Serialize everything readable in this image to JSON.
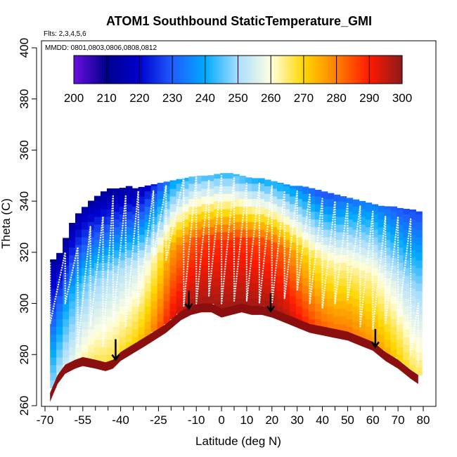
{
  "chart_data": {
    "type": "heatmap",
    "title": "ATOM1 Southbound StaticTemperature_GMI",
    "flights_label": "Flts: 2,3,4,5,6",
    "dates_label": "MMDD: 0801,0803,0806,0808,0812",
    "xlabel": "Latitude (deg N)",
    "ylabel": "Theta (C)",
    "xlim": [
      -70,
      80
    ],
    "ylim": [
      260,
      400
    ],
    "x_ticks": [
      -70,
      -55,
      -40,
      -25,
      -10,
      0,
      10,
      20,
      30,
      40,
      50,
      60,
      70,
      80
    ],
    "x_minor_ticks": [
      -65,
      -60,
      -50,
      -45,
      -35,
      -30,
      -20,
      -15,
      -5,
      5,
      15,
      25,
      35,
      45,
      55,
      65,
      75
    ],
    "y_ticks": [
      260,
      280,
      300,
      320,
      340,
      360,
      380,
      400
    ],
    "colorbar": {
      "ticks": [
        200,
        210,
        220,
        230,
        240,
        250,
        260,
        270,
        280,
        290,
        300
      ],
      "range": [
        200,
        300
      ],
      "colors": [
        "#6a0ee0",
        "#00008b",
        "#0000cd",
        "#1e5cff",
        "#00aaff",
        "#a8ddff",
        "#ffffe0",
        "#ffd700",
        "#ff7f00",
        "#ff1a00",
        "#8b1a1a"
      ]
    },
    "surface_theta": [
      [
        -68,
        265
      ],
      [
        -65,
        272
      ],
      [
        -62,
        276
      ],
      [
        -58,
        278
      ],
      [
        -55,
        279
      ],
      [
        -50,
        278
      ],
      [
        -46,
        277
      ],
      [
        -43,
        278
      ],
      [
        -40,
        281
      ],
      [
        -35,
        284
      ],
      [
        -30,
        287
      ],
      [
        -22,
        292
      ],
      [
        -16,
        297
      ],
      [
        -12,
        299
      ],
      [
        -8,
        300
      ],
      [
        -4,
        300
      ],
      [
        0,
        298
      ],
      [
        4,
        299
      ],
      [
        8,
        300
      ],
      [
        12,
        299
      ],
      [
        16,
        299
      ],
      [
        20,
        298
      ],
      [
        25,
        296
      ],
      [
        30,
        294
      ],
      [
        35,
        292
      ],
      [
        40,
        291
      ],
      [
        45,
        290
      ],
      [
        50,
        289
      ],
      [
        55,
        287
      ],
      [
        60,
        285
      ],
      [
        65,
        281
      ],
      [
        70,
        278
      ],
      [
        75,
        274
      ],
      [
        78,
        272
      ]
    ],
    "top_theta": [
      [
        -68,
        316
      ],
      [
        -66,
        318
      ],
      [
        -64,
        320
      ],
      [
        -62,
        325
      ],
      [
        -60,
        330
      ],
      [
        -58,
        334
      ],
      [
        -55,
        337
      ],
      [
        -52,
        340
      ],
      [
        -48,
        343
      ],
      [
        -45,
        345
      ],
      [
        -40,
        345
      ],
      [
        -37,
        346
      ],
      [
        -34,
        345
      ],
      [
        -30,
        346
      ],
      [
        -25,
        347
      ],
      [
        -20,
        348
      ],
      [
        -15,
        349
      ],
      [
        -10,
        350
      ],
      [
        -5,
        350
      ],
      [
        0,
        351
      ],
      [
        4,
        351
      ],
      [
        8,
        350
      ],
      [
        12,
        349
      ],
      [
        16,
        349
      ],
      [
        20,
        348
      ],
      [
        24,
        347
      ],
      [
        28,
        346
      ],
      [
        32,
        346
      ],
      [
        36,
        345
      ],
      [
        40,
        344
      ],
      [
        44,
        343
      ],
      [
        48,
        342
      ],
      [
        52,
        341
      ],
      [
        56,
        340
      ],
      [
        60,
        339
      ],
      [
        64,
        338
      ],
      [
        68,
        338
      ],
      [
        72,
        337
      ],
      [
        75,
        337
      ],
      [
        78,
        336
      ]
    ],
    "temperature_profile": [
      [
        -68,
        248,
        230,
        213
      ],
      [
        -60,
        256,
        240,
        212
      ],
      [
        -55,
        262,
        245,
        214
      ],
      [
        -50,
        266,
        248,
        213
      ],
      [
        -45,
        267,
        250,
        212
      ],
      [
        -40,
        268,
        251,
        213
      ],
      [
        -35,
        270,
        253,
        213
      ],
      [
        -30,
        275,
        257,
        218
      ],
      [
        -25,
        283,
        265,
        226
      ],
      [
        -20,
        292,
        276,
        237
      ],
      [
        -15,
        296,
        281,
        241
      ],
      [
        -10,
        298,
        285,
        244
      ],
      [
        -5,
        298,
        287,
        244
      ],
      [
        0,
        298,
        288,
        243
      ],
      [
        5,
        298,
        288,
        243
      ],
      [
        10,
        298,
        287,
        242
      ],
      [
        15,
        298,
        286,
        240
      ],
      [
        20,
        298,
        285,
        240
      ],
      [
        25,
        296,
        281,
        238
      ],
      [
        30,
        292,
        274,
        235
      ],
      [
        35,
        287,
        268,
        231
      ],
      [
        40,
        283,
        264,
        228
      ],
      [
        45,
        281,
        262,
        229
      ],
      [
        50,
        281,
        263,
        232
      ],
      [
        55,
        279,
        262,
        233
      ],
      [
        60,
        277,
        262,
        234
      ],
      [
        65,
        275,
        258,
        232
      ],
      [
        70,
        271,
        255,
        229
      ],
      [
        75,
        267,
        251,
        228
      ],
      [
        78,
        266,
        250,
        228
      ]
    ],
    "trajectory_points": [
      [
        -68,
        292,
        316
      ],
      [
        -62,
        300,
        320
      ],
      [
        -57,
        283,
        322
      ],
      [
        -52,
        291,
        330
      ],
      [
        -47,
        283,
        334
      ],
      [
        -43,
        293,
        342
      ],
      [
        -38,
        291,
        342
      ],
      [
        -33,
        299,
        344
      ],
      [
        -27,
        318,
        344
      ],
      [
        -22,
        317,
        346
      ],
      [
        -15,
        299,
        349
      ],
      [
        -10,
        300,
        350
      ],
      [
        -5,
        303,
        348
      ],
      [
        0,
        300,
        350
      ],
      [
        5,
        301,
        349
      ],
      [
        10,
        301,
        347
      ],
      [
        15,
        300,
        347
      ],
      [
        20,
        300,
        346
      ],
      [
        25,
        302,
        344
      ],
      [
        30,
        305,
        344
      ],
      [
        35,
        300,
        343
      ],
      [
        40,
        298,
        341
      ],
      [
        45,
        300,
        340
      ],
      [
        50,
        301,
        339
      ],
      [
        55,
        291,
        338
      ],
      [
        60,
        290,
        336
      ],
      [
        65,
        292,
        334
      ],
      [
        70,
        292,
        334
      ],
      [
        75,
        280,
        333
      ],
      [
        78,
        276,
        300
      ]
    ],
    "arrows": [
      {
        "lat": -42,
        "theta_from": 286,
        "theta_to": 278
      },
      {
        "lat": -13,
        "theta_from": 305,
        "theta_to": 298
      },
      {
        "lat": 19.5,
        "theta_from": 304,
        "theta_to": 297
      },
      {
        "lat": 61,
        "theta_from": 290,
        "theta_to": 283
      }
    ]
  }
}
